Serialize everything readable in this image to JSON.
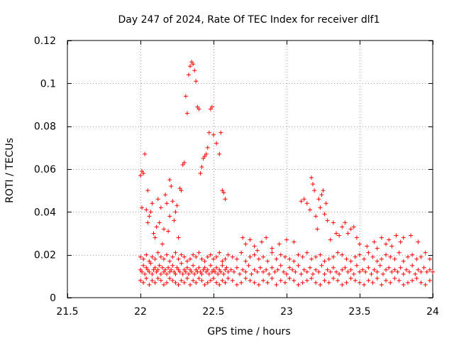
{
  "chart_data": {
    "type": "scatter",
    "title": "Day 247 of 2024, Rate Of TEC Index for receiver dlf1",
    "xlabel": "GPS time / hours",
    "ylabel": "ROTI / TECUs",
    "xlim": [
      21.5,
      24
    ],
    "ylim": [
      0,
      0.12
    ],
    "xticks": [
      21.5,
      22,
      22.5,
      23,
      23.5,
      24
    ],
    "xtick_labels": [
      "21.5",
      "22",
      "22.5",
      "23",
      "23.5",
      "24"
    ],
    "yticks": [
      0,
      0.02,
      0.04,
      0.06,
      0.08,
      0.1,
      0.12
    ],
    "ytick_labels": [
      "0",
      "0.02",
      "0.04",
      "0.06",
      "0.08",
      "0.1",
      "0.12"
    ],
    "grid": true,
    "marker": "+",
    "series": [
      {
        "name": "dlf1",
        "color": "#ff0000",
        "x": [
          22.0,
          22.01,
          22.02,
          22.03,
          22.04,
          22.05,
          22.06,
          22.07,
          22.08,
          22.09,
          22.1,
          22.11,
          22.12,
          22.13,
          22.14,
          22.15,
          22.16,
          22.17,
          22.18,
          22.19,
          22.2,
          22.21,
          22.22,
          22.23,
          22.24,
          22.25,
          22.26,
          22.27,
          22.28,
          22.29,
          22.3,
          22.31,
          22.32,
          22.33,
          22.34,
          22.35,
          22.36,
          22.37,
          22.38,
          22.39,
          22.4,
          22.41,
          22.42,
          22.43,
          22.44,
          22.45,
          22.46,
          22.47,
          22.48,
          22.49,
          22.5,
          22.51,
          22.52,
          22.53,
          22.54,
          22.55,
          22.56,
          22.57,
          22.58,
          22.59,
          22.6,
          22.62,
          22.64,
          22.66,
          22.68,
          22.7,
          22.72,
          22.74,
          22.76,
          22.78,
          22.8,
          22.82,
          22.84,
          22.86,
          22.88,
          22.9,
          22.92,
          22.94,
          22.96,
          22.98,
          23.0,
          23.02,
          23.04,
          23.06,
          23.08,
          23.1,
          23.12,
          23.14,
          23.16,
          23.18,
          23.2,
          23.22,
          23.24,
          23.26,
          23.28,
          23.3,
          23.32,
          23.34,
          23.36,
          23.38,
          23.4,
          23.42,
          23.44,
          23.46,
          23.48,
          23.5,
          23.52,
          23.54,
          23.56,
          23.58,
          23.6,
          23.62,
          23.64,
          23.66,
          23.68,
          23.7,
          23.72,
          23.74,
          23.76,
          23.78,
          23.8,
          23.82,
          23.84,
          23.86,
          23.88,
          23.9,
          23.92,
          23.94,
          23.96,
          23.98,
          24.0,
          22.0,
          22.02,
          22.04,
          22.06,
          22.08,
          22.1,
          22.12,
          22.14,
          22.16,
          22.18,
          22.2,
          22.22,
          22.24,
          22.26,
          22.28,
          22.3,
          22.32,
          22.34,
          22.36,
          22.38,
          22.4,
          22.42,
          22.44,
          22.46,
          22.48,
          22.5,
          22.52,
          22.54,
          22.56,
          22.58,
          22.6,
          22.63,
          22.66,
          22.69,
          22.72,
          22.75,
          22.78,
          22.81,
          22.84,
          22.87,
          22.9,
          22.93,
          22.96,
          22.99,
          23.02,
          23.05,
          23.08,
          23.11,
          23.14,
          23.17,
          23.2,
          23.23,
          23.26,
          23.29,
          23.32,
          23.35,
          23.38,
          23.41,
          23.44,
          23.47,
          23.5,
          23.53,
          23.56,
          23.59,
          23.62,
          23.65,
          23.68,
          23.71,
          23.74,
          23.77,
          23.8,
          23.83,
          23.86,
          23.89,
          23.92,
          23.95,
          23.98,
          22.0,
          22.02,
          22.04,
          22.06,
          22.08,
          22.1,
          22.12,
          22.14,
          22.16,
          22.18,
          22.2,
          22.22,
          22.24,
          22.26,
          22.28,
          22.3,
          22.32,
          22.34,
          22.36,
          22.38,
          22.4,
          22.42,
          22.44,
          22.46,
          22.48,
          22.5,
          22.52,
          22.54,
          22.56,
          22.58,
          22.6,
          22.63,
          22.66,
          22.69,
          22.72,
          22.75,
          22.78,
          22.81,
          22.84,
          22.87,
          22.9,
          22.93,
          22.96,
          22.99,
          23.02,
          23.05,
          23.08,
          23.11,
          23.14,
          23.17,
          23.2,
          23.23,
          23.26,
          23.29,
          23.32,
          23.35,
          23.38,
          23.41,
          23.44,
          23.47,
          23.5,
          23.53,
          23.56,
          23.59,
          23.62,
          23.65,
          23.68,
          23.71,
          23.74,
          23.77,
          23.8,
          23.83,
          23.86,
          23.89,
          23.92,
          23.95,
          23.98,
          22.0,
          22.01,
          22.02,
          22.01,
          22.03,
          22.04,
          22.05,
          22.06,
          22.05,
          22.07,
          22.08,
          22.09,
          22.1,
          22.11,
          22.12,
          22.13,
          22.14,
          22.15,
          22.16,
          22.17,
          22.18,
          22.19,
          22.2,
          22.21,
          22.22,
          22.2,
          22.23,
          22.24,
          22.25,
          22.26,
          22.27,
          22.28,
          22.29,
          22.3,
          22.31,
          22.32,
          22.33,
          22.34,
          22.35,
          22.36,
          22.37,
          22.38,
          22.39,
          22.4,
          22.41,
          22.42,
          22.43,
          22.44,
          22.45,
          22.46,
          22.47,
          22.48,
          22.49,
          22.5,
          22.52,
          22.54,
          22.55,
          22.56,
          22.57,
          22.58,
          22.7,
          22.72,
          22.75,
          22.78,
          22.8,
          22.83,
          22.86,
          22.9,
          22.95,
          23.0,
          23.05,
          23.1,
          23.12,
          23.14,
          23.16,
          23.17,
          23.18,
          23.19,
          23.2,
          23.21,
          23.22,
          23.23,
          23.24,
          23.25,
          23.26,
          23.27,
          23.28,
          23.3,
          23.32,
          23.34,
          23.36,
          23.38,
          23.4,
          23.42,
          23.44,
          23.46,
          23.48,
          23.5,
          23.55,
          23.6,
          23.62,
          23.65,
          23.68,
          23.7,
          23.72,
          23.75,
          23.78,
          23.8,
          23.85,
          23.9
        ],
        "y": [
          0.013,
          0.012,
          0.015,
          0.011,
          0.014,
          0.013,
          0.012,
          0.016,
          0.011,
          0.013,
          0.014,
          0.012,
          0.013,
          0.015,
          0.011,
          0.014,
          0.012,
          0.013,
          0.011,
          0.014,
          0.012,
          0.013,
          0.015,
          0.012,
          0.011,
          0.014,
          0.013,
          0.012,
          0.016,
          0.011,
          0.013,
          0.012,
          0.014,
          0.011,
          0.013,
          0.012,
          0.015,
          0.011,
          0.013,
          0.012,
          0.014,
          0.012,
          0.011,
          0.013,
          0.014,
          0.012,
          0.013,
          0.011,
          0.015,
          0.012,
          0.013,
          0.012,
          0.014,
          0.011,
          0.013,
          0.012,
          0.015,
          0.011,
          0.013,
          0.014,
          0.012,
          0.013,
          0.012,
          0.014,
          0.011,
          0.013,
          0.012,
          0.015,
          0.011,
          0.013,
          0.012,
          0.014,
          0.012,
          0.013,
          0.011,
          0.014,
          0.012,
          0.013,
          0.015,
          0.012,
          0.011,
          0.014,
          0.013,
          0.012,
          0.015,
          0.011,
          0.013,
          0.012,
          0.014,
          0.011,
          0.013,
          0.012,
          0.015,
          0.011,
          0.013,
          0.012,
          0.014,
          0.012,
          0.011,
          0.013,
          0.014,
          0.012,
          0.013,
          0.011,
          0.015,
          0.012,
          0.013,
          0.012,
          0.014,
          0.011,
          0.013,
          0.012,
          0.015,
          0.011,
          0.013,
          0.014,
          0.012,
          0.013,
          0.012,
          0.014,
          0.011,
          0.013,
          0.012,
          0.015,
          0.011,
          0.013,
          0.012,
          0.014,
          0.012,
          0.013,
          0.012,
          0.008,
          0.007,
          0.009,
          0.006,
          0.008,
          0.007,
          0.009,
          0.008,
          0.006,
          0.007,
          0.009,
          0.008,
          0.007,
          0.006,
          0.008,
          0.007,
          0.009,
          0.006,
          0.008,
          0.007,
          0.009,
          0.008,
          0.006,
          0.007,
          0.008,
          0.009,
          0.007,
          0.006,
          0.008,
          0.007,
          0.009,
          0.008,
          0.006,
          0.007,
          0.009,
          0.008,
          0.007,
          0.006,
          0.008,
          0.007,
          0.009,
          0.006,
          0.008,
          0.007,
          0.009,
          0.008,
          0.006,
          0.007,
          0.008,
          0.009,
          0.007,
          0.006,
          0.008,
          0.007,
          0.009,
          0.008,
          0.006,
          0.007,
          0.009,
          0.008,
          0.007,
          0.006,
          0.008,
          0.007,
          0.009,
          0.006,
          0.008,
          0.007,
          0.009,
          0.008,
          0.006,
          0.007,
          0.008,
          0.009,
          0.007,
          0.006,
          0.008,
          0.019,
          0.018,
          0.02,
          0.017,
          0.019,
          0.018,
          0.021,
          0.019,
          0.018,
          0.02,
          0.017,
          0.019,
          0.021,
          0.018,
          0.02,
          0.019,
          0.017,
          0.018,
          0.02,
          0.019,
          0.021,
          0.018,
          0.017,
          0.019,
          0.02,
          0.018,
          0.019,
          0.021,
          0.017,
          0.018,
          0.02,
          0.019,
          0.018,
          0.021,
          0.017,
          0.019,
          0.02,
          0.018,
          0.019,
          0.017,
          0.021,
          0.018,
          0.02,
          0.019,
          0.018,
          0.017,
          0.02,
          0.019,
          0.021,
          0.018,
          0.019,
          0.02,
          0.017,
          0.018,
          0.019,
          0.021,
          0.02,
          0.018,
          0.017,
          0.019,
          0.02,
          0.018,
          0.021,
          0.019,
          0.017,
          0.018,
          0.02,
          0.019,
          0.018,
          0.021,
          0.017,
          0.019,
          0.02,
          0.018,
          0.019,
          0.021,
          0.018,
          0.057,
          0.059,
          0.058,
          0.042,
          0.067,
          0.041,
          0.05,
          0.038,
          0.035,
          0.04,
          0.044,
          0.03,
          0.028,
          0.033,
          0.046,
          0.035,
          0.042,
          0.025,
          0.032,
          0.048,
          0.044,
          0.031,
          0.038,
          0.052,
          0.045,
          0.055,
          0.036,
          0.04,
          0.043,
          0.028,
          0.051,
          0.05,
          0.062,
          0.063,
          0.094,
          0.086,
          0.104,
          0.108,
          0.11,
          0.109,
          0.106,
          0.101,
          0.089,
          0.088,
          0.058,
          0.061,
          0.065,
          0.066,
          0.067,
          0.07,
          0.077,
          0.088,
          0.089,
          0.076,
          0.072,
          0.067,
          0.077,
          0.05,
          0.049,
          0.046,
          0.028,
          0.025,
          0.027,
          0.024,
          0.022,
          0.026,
          0.028,
          0.023,
          0.025,
          0.027,
          0.026,
          0.045,
          0.046,
          0.044,
          0.041,
          0.056,
          0.053,
          0.05,
          0.038,
          0.032,
          0.046,
          0.042,
          0.048,
          0.05,
          0.039,
          0.044,
          0.036,
          0.027,
          0.035,
          0.03,
          0.029,
          0.033,
          0.035,
          0.03,
          0.032,
          0.033,
          0.028,
          0.025,
          0.024,
          0.026,
          0.023,
          0.028,
          0.025,
          0.027,
          0.024,
          0.029,
          0.026,
          0.028,
          0.029,
          0.026
        ]
      }
    ]
  }
}
